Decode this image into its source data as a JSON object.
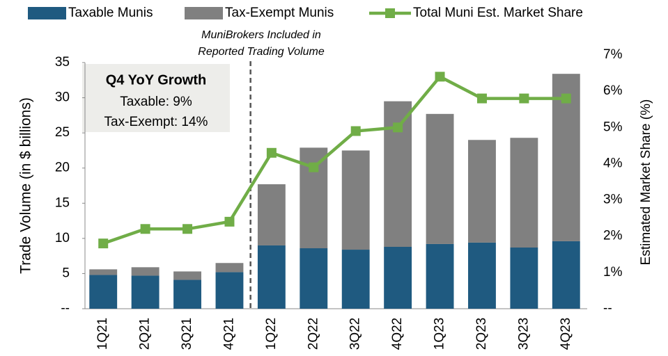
{
  "chart_data": {
    "type": "bar",
    "categories": [
      "1Q21",
      "2Q21",
      "3Q21",
      "4Q21",
      "1Q22",
      "2Q22",
      "3Q22",
      "4Q22",
      "1Q23",
      "2Q23",
      "3Q23",
      "4Q23"
    ],
    "series": [
      {
        "name": "Taxable Munis",
        "color": "#1f5a80",
        "values": [
          4.8,
          4.7,
          4.1,
          5.2,
          9.0,
          8.6,
          8.4,
          8.8,
          9.2,
          9.4,
          8.7,
          9.6
        ]
      },
      {
        "name": "Tax-Exempt Munis",
        "color": "#808080",
        "values": [
          0.8,
          1.2,
          1.2,
          1.3,
          8.7,
          14.3,
          14.1,
          20.7,
          18.5,
          14.6,
          15.6,
          23.8
        ]
      },
      {
        "name": "Total Muni Est. Market Share",
        "color": "#70ad47",
        "axis": "y2",
        "values": [
          1.8,
          2.2,
          2.2,
          2.4,
          4.3,
          3.9,
          4.9,
          5.0,
          6.4,
          5.8,
          5.8,
          5.8
        ]
      }
    ],
    "ylabel": "Trade Volume (in $ billions)",
    "y2label": "Estimated Market Share (%)",
    "ylim": [
      0,
      35
    ],
    "yticks": [
      {
        "value": 0,
        "label": "--"
      },
      5,
      10,
      15,
      20,
      25,
      30,
      35
    ],
    "y2lim": [
      0,
      7
    ],
    "y2ticks": [
      {
        "value": 0,
        "label": "--"
      },
      {
        "value": 1,
        "label": "1%"
      },
      {
        "value": 2,
        "label": "2%"
      },
      {
        "value": 3,
        "label": "3%"
      },
      {
        "value": 4,
        "label": "4%"
      },
      {
        "value": 5,
        "label": "5%"
      },
      {
        "value": 6,
        "label": "6%"
      },
      {
        "value": 7,
        "label": "7%"
      }
    ],
    "annotations": [
      "MuniBrokers Included in",
      "Reported Trading Volume"
    ],
    "growth_box": {
      "title": "Q4 YoY Growth",
      "lines": [
        "Taxable: 9%",
        "Tax-Exempt: 14%"
      ]
    }
  }
}
